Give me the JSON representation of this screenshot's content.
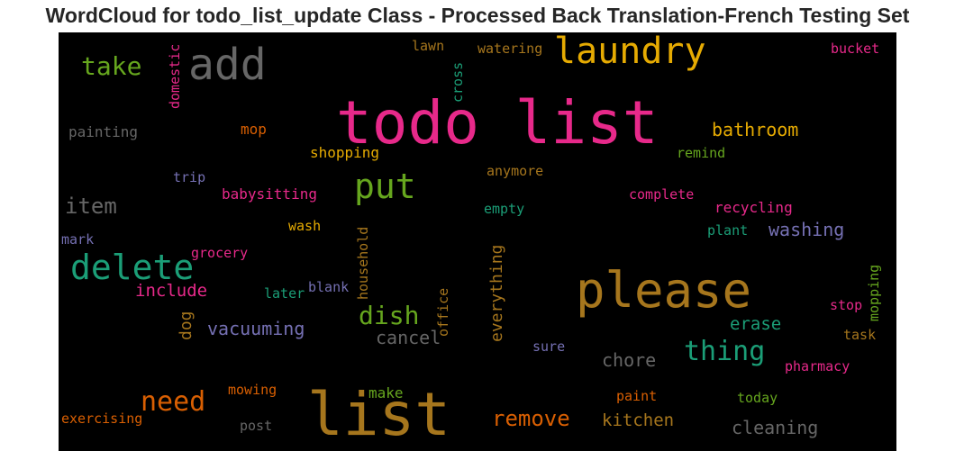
{
  "title": "WordCloud for todo_list_update Class - Processed Back Translation-French Testing Set",
  "background_color": "#000000",
  "colors": {
    "pink": "#e7298a",
    "gold": "#e6ab02",
    "green": "#66a61e",
    "gray": "#666666",
    "teal": "#1b9e77",
    "brown": "#a6761d",
    "orange": "#d95f02",
    "purple": "#7570b3"
  },
  "words": [
    {
      "text": "todo list",
      "color": "#e7298a",
      "orientation": "horizontal"
    },
    {
      "text": "list",
      "color": "#a6761d",
      "orientation": "horizontal"
    },
    {
      "text": "please",
      "color": "#a6761d",
      "orientation": "horizontal"
    },
    {
      "text": "add",
      "color": "#666666",
      "orientation": "horizontal"
    },
    {
      "text": "laundry",
      "color": "#e6ab02",
      "orientation": "horizontal"
    },
    {
      "text": "delete",
      "color": "#1b9e77",
      "orientation": "horizontal"
    },
    {
      "text": "put",
      "color": "#66a61e",
      "orientation": "horizontal"
    },
    {
      "text": "take",
      "color": "#66a61e",
      "orientation": "horizontal"
    },
    {
      "text": "item",
      "color": "#666666",
      "orientation": "horizontal"
    },
    {
      "text": "dish",
      "color": "#66a61e",
      "orientation": "horizontal"
    },
    {
      "text": "thing",
      "color": "#1b9e77",
      "orientation": "horizontal"
    },
    {
      "text": "need",
      "color": "#d95f02",
      "orientation": "horizontal"
    },
    {
      "text": "remove",
      "color": "#d95f02",
      "orientation": "horizontal"
    },
    {
      "text": "bathroom",
      "color": "#e6ab02",
      "orientation": "horizontal"
    },
    {
      "text": "vacuuming",
      "color": "#7570b3",
      "orientation": "horizontal"
    },
    {
      "text": "washing",
      "color": "#7570b3",
      "orientation": "horizontal"
    },
    {
      "text": "chore",
      "color": "#666666",
      "orientation": "horizontal"
    },
    {
      "text": "cancel",
      "color": "#666666",
      "orientation": "horizontal"
    },
    {
      "text": "include",
      "color": "#e7298a",
      "orientation": "horizontal"
    },
    {
      "text": "erase",
      "color": "#1b9e77",
      "orientation": "horizontal"
    },
    {
      "text": "kitchen",
      "color": "#a6761d",
      "orientation": "horizontal"
    },
    {
      "text": "cleaning",
      "color": "#666666",
      "orientation": "horizontal"
    },
    {
      "text": "everything",
      "color": "#a6761d",
      "orientation": "vertical"
    },
    {
      "text": "shopping",
      "color": "#e6ab02",
      "orientation": "horizontal"
    },
    {
      "text": "babysitting",
      "color": "#e7298a",
      "orientation": "horizontal"
    },
    {
      "text": "recycling",
      "color": "#e7298a",
      "orientation": "horizontal"
    },
    {
      "text": "complete",
      "color": "#e7298a",
      "orientation": "horizontal"
    },
    {
      "text": "make",
      "color": "#66a61e",
      "orientation": "horizontal"
    },
    {
      "text": "painting",
      "color": "#666666",
      "orientation": "horizontal"
    },
    {
      "text": "mop",
      "color": "#d95f02",
      "orientation": "horizontal"
    },
    {
      "text": "trip",
      "color": "#7570b3",
      "orientation": "horizontal"
    },
    {
      "text": "remind",
      "color": "#66a61e",
      "orientation": "horizontal"
    },
    {
      "text": "anymore",
      "color": "#a6761d",
      "orientation": "horizontal"
    },
    {
      "text": "empty",
      "color": "#1b9e77",
      "orientation": "horizontal"
    },
    {
      "text": "wash",
      "color": "#e6ab02",
      "orientation": "horizontal"
    },
    {
      "text": "plant",
      "color": "#1b9e77",
      "orientation": "horizontal"
    },
    {
      "text": "grocery",
      "color": "#e7298a",
      "orientation": "horizontal"
    },
    {
      "text": "mark",
      "color": "#7570b3",
      "orientation": "horizontal"
    },
    {
      "text": "later",
      "color": "#1b9e77",
      "orientation": "horizontal"
    },
    {
      "text": "blank",
      "color": "#7570b3",
      "orientation": "horizontal"
    },
    {
      "text": "household",
      "color": "#a6761d",
      "orientation": "vertical"
    },
    {
      "text": "office",
      "color": "#a6761d",
      "orientation": "vertical"
    },
    {
      "text": "dog",
      "color": "#a6761d",
      "orientation": "vertical"
    },
    {
      "text": "stop",
      "color": "#e7298a",
      "orientation": "horizontal"
    },
    {
      "text": "mopping",
      "color": "#66a61e",
      "orientation": "vertical"
    },
    {
      "text": "task",
      "color": "#a6761d",
      "orientation": "horizontal"
    },
    {
      "text": "sure",
      "color": "#7570b3",
      "orientation": "horizontal"
    },
    {
      "text": "pharmacy",
      "color": "#e7298a",
      "orientation": "horizontal"
    },
    {
      "text": "mowing",
      "color": "#d95f02",
      "orientation": "horizontal"
    },
    {
      "text": "paint",
      "color": "#d95f02",
      "orientation": "horizontal"
    },
    {
      "text": "today",
      "color": "#66a61e",
      "orientation": "horizontal"
    },
    {
      "text": "exercising",
      "color": "#d95f02",
      "orientation": "horizontal"
    },
    {
      "text": "post",
      "color": "#666666",
      "orientation": "horizontal"
    },
    {
      "text": "lawn",
      "color": "#a6761d",
      "orientation": "horizontal"
    },
    {
      "text": "watering",
      "color": "#a6761d",
      "orientation": "horizontal"
    },
    {
      "text": "bucket",
      "color": "#e7298a",
      "orientation": "horizontal"
    },
    {
      "text": "domestic",
      "color": "#e7298a",
      "orientation": "vertical"
    },
    {
      "text": "cross",
      "color": "#1b9e77",
      "orientation": "vertical"
    }
  ]
}
